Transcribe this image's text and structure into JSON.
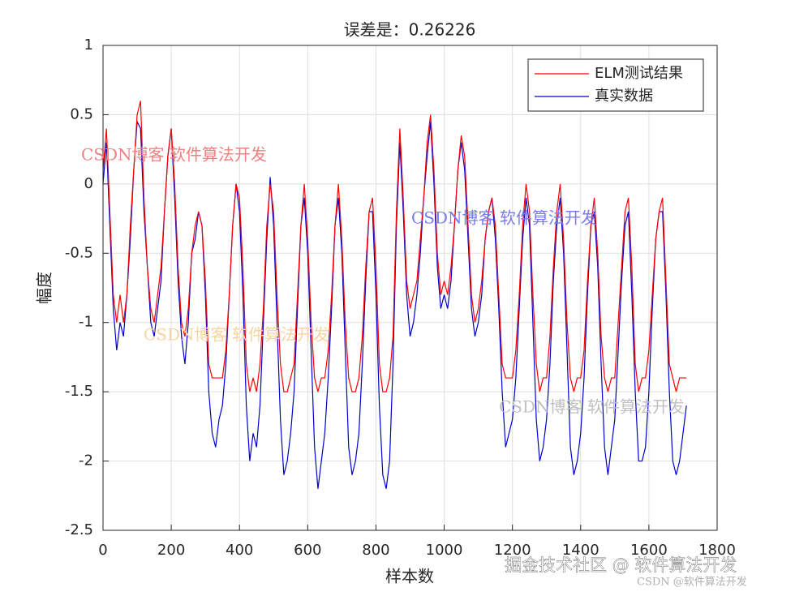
{
  "chart_data": {
    "type": "line",
    "title": "误差是：0.26226",
    "xlabel": "样本数",
    "ylabel": "幅度",
    "xlim": [
      0,
      1800
    ],
    "ylim": [
      -2.5,
      1
    ],
    "xticks": [
      0,
      200,
      400,
      600,
      800,
      1000,
      1200,
      1400,
      1600,
      1800
    ],
    "yticks": [
      -2.5,
      -2,
      -1.5,
      -1,
      -0.5,
      0,
      0.5,
      1
    ],
    "grid": true,
    "legend": "northeast",
    "x": [
      0,
      10,
      20,
      30,
      40,
      50,
      60,
      70,
      80,
      90,
      100,
      110,
      120,
      130,
      140,
      150,
      160,
      170,
      180,
      190,
      200,
      210,
      220,
      230,
      240,
      250,
      260,
      270,
      280,
      290,
      300,
      310,
      320,
      330,
      340,
      350,
      360,
      370,
      380,
      390,
      400,
      410,
      420,
      430,
      440,
      450,
      460,
      470,
      480,
      490,
      500,
      510,
      520,
      530,
      540,
      550,
      560,
      570,
      580,
      590,
      600,
      610,
      620,
      630,
      640,
      650,
      660,
      670,
      680,
      690,
      700,
      710,
      720,
      730,
      740,
      750,
      760,
      770,
      780,
      790,
      800,
      810,
      820,
      830,
      840,
      850,
      860,
      870,
      880,
      890,
      900,
      910,
      920,
      930,
      940,
      950,
      960,
      970,
      980,
      990,
      1000,
      1010,
      1020,
      1030,
      1040,
      1050,
      1060,
      1070,
      1080,
      1090,
      1100,
      1110,
      1120,
      1130,
      1140,
      1150,
      1160,
      1170,
      1180,
      1190,
      1200,
      1210,
      1220,
      1230,
      1240,
      1250,
      1260,
      1270,
      1280,
      1290,
      1300,
      1310,
      1320,
      1330,
      1340,
      1350,
      1360,
      1370,
      1380,
      1390,
      1400,
      1410,
      1420,
      1430,
      1440,
      1450,
      1460,
      1470,
      1480,
      1490,
      1500,
      1510,
      1520,
      1530,
      1540,
      1550,
      1560,
      1570,
      1580,
      1590,
      1600,
      1610,
      1620,
      1630,
      1640,
      1650,
      1660,
      1670,
      1680,
      1690,
      1700,
      1710
    ],
    "series": [
      {
        "name": "ELM测试结果",
        "color": "#ff0000",
        "values": [
          0.1,
          0.4,
          -0.2,
          -0.8,
          -1.0,
          -0.8,
          -1.0,
          -0.8,
          -0.3,
          0.1,
          0.5,
          0.6,
          -0.1,
          -0.6,
          -0.9,
          -1.0,
          -0.8,
          -0.6,
          -0.2,
          0.2,
          0.4,
          0.0,
          -0.6,
          -1.0,
          -1.1,
          -0.9,
          -0.5,
          -0.3,
          -0.2,
          -0.3,
          -0.7,
          -1.3,
          -1.4,
          -1.4,
          -1.4,
          -1.4,
          -1.2,
          -0.8,
          -0.3,
          0.0,
          -0.1,
          -0.6,
          -1.3,
          -1.5,
          -1.4,
          -1.5,
          -1.3,
          -0.9,
          -0.3,
          0.0,
          -0.2,
          -0.8,
          -1.3,
          -1.5,
          -1.5,
          -1.4,
          -1.3,
          -0.8,
          -0.3,
          0.0,
          -0.4,
          -1.0,
          -1.4,
          -1.5,
          -1.4,
          -1.4,
          -1.2,
          -0.8,
          -0.3,
          0.0,
          -0.4,
          -1.0,
          -1.4,
          -1.5,
          -1.5,
          -1.4,
          -1.1,
          -0.6,
          -0.2,
          -0.1,
          -0.6,
          -1.3,
          -1.5,
          -1.5,
          -1.4,
          -1.1,
          -0.2,
          0.4,
          -0.1,
          -0.7,
          -0.9,
          -0.8,
          -0.7,
          -0.4,
          -0.1,
          0.3,
          0.5,
          0.1,
          -0.5,
          -0.8,
          -0.7,
          -0.8,
          -0.6,
          -0.3,
          0.1,
          0.35,
          0.2,
          -0.3,
          -0.8,
          -1.0,
          -0.9,
          -0.7,
          -0.4,
          -0.2,
          -0.1,
          -0.3,
          -0.8,
          -1.3,
          -1.4,
          -1.4,
          -1.4,
          -1.2,
          -0.8,
          -0.3,
          0.0,
          -0.2,
          -0.8,
          -1.3,
          -1.5,
          -1.4,
          -1.4,
          -1.1,
          -0.6,
          -0.2,
          0.0,
          -0.4,
          -1.0,
          -1.4,
          -1.5,
          -1.4,
          -1.4,
          -1.2,
          -0.7,
          -0.3,
          -0.1,
          -0.5,
          -1.1,
          -1.4,
          -1.5,
          -1.4,
          -1.4,
          -1.0,
          -0.6,
          -0.2,
          -0.1,
          -0.6,
          -1.3,
          -1.5,
          -1.4,
          -1.4,
          -1.2,
          -0.8,
          -0.4,
          -0.2,
          -0.1,
          -0.7,
          -1.3,
          -1.4,
          -1.5,
          -1.4,
          -1.4,
          -1.4
        ]
      },
      {
        "name": "真实数据",
        "color": "#0000cc",
        "values": [
          0.0,
          0.3,
          -0.3,
          -0.9,
          -1.2,
          -1.0,
          -1.1,
          -0.8,
          -0.4,
          0.1,
          0.45,
          0.4,
          -0.2,
          -0.6,
          -1.0,
          -1.1,
          -0.9,
          -0.7,
          -0.2,
          0.2,
          0.4,
          -0.1,
          -0.7,
          -1.1,
          -1.3,
          -1.0,
          -0.5,
          -0.4,
          -0.2,
          -0.3,
          -0.8,
          -1.5,
          -1.8,
          -1.9,
          -1.7,
          -1.6,
          -1.3,
          -0.8,
          -0.3,
          0.0,
          -0.2,
          -0.8,
          -1.6,
          -2.0,
          -1.8,
          -1.9,
          -1.6,
          -1.0,
          -0.4,
          0.05,
          -0.3,
          -1.0,
          -1.7,
          -2.1,
          -2.0,
          -1.8,
          -1.5,
          -0.9,
          -0.3,
          -0.1,
          -0.5,
          -1.2,
          -1.9,
          -2.2,
          -2.0,
          -1.8,
          -1.4,
          -0.9,
          -0.3,
          -0.1,
          -0.5,
          -1.2,
          -1.9,
          -2.1,
          -2.0,
          -1.8,
          -1.3,
          -0.7,
          -0.2,
          -0.2,
          -0.8,
          -1.6,
          -2.1,
          -2.2,
          -2.0,
          -1.3,
          -0.3,
          0.3,
          -0.2,
          -0.8,
          -1.1,
          -1.0,
          -0.8,
          -0.5,
          -0.1,
          0.2,
          0.45,
          0.0,
          -0.6,
          -0.9,
          -0.8,
          -0.9,
          -0.7,
          -0.3,
          0.1,
          0.3,
          0.1,
          -0.4,
          -0.9,
          -1.1,
          -1.0,
          -0.8,
          -0.4,
          -0.2,
          -0.1,
          -0.4,
          -0.9,
          -1.5,
          -1.9,
          -1.8,
          -1.7,
          -1.4,
          -0.9,
          -0.4,
          -0.1,
          -0.3,
          -1.0,
          -1.7,
          -2.0,
          -1.9,
          -1.7,
          -1.3,
          -0.7,
          -0.3,
          -0.1,
          -0.5,
          -1.2,
          -1.9,
          -2.1,
          -2.0,
          -1.8,
          -1.4,
          -0.8,
          -0.3,
          -0.2,
          -0.6,
          -1.3,
          -1.9,
          -2.1,
          -1.9,
          -1.7,
          -1.2,
          -0.7,
          -0.3,
          -0.2,
          -0.8,
          -1.5,
          -2.0,
          -2.0,
          -1.9,
          -1.5,
          -0.9,
          -0.4,
          -0.2,
          -0.2,
          -0.8,
          -1.5,
          -2.0,
          -2.1,
          -2.0,
          -1.8,
          -1.6
        ]
      }
    ],
    "annotations": [
      {
        "text": "CSDN博客 软件算法开发",
        "color": "#f08080"
      },
      {
        "text": "CSDN博客 软件算法开发",
        "color": "#7b7bf0"
      },
      {
        "text": "CSDN博客 软件算法开发",
        "color": "#f5d5a0"
      },
      {
        "text": "CSDN博客 软件算法开发",
        "color": "#c0c0c0"
      },
      {
        "text": "掘金技术社区 @ 软件算法开发",
        "color": "#ffffff"
      },
      {
        "text": "CSDN @软件算法开发",
        "color": "#e0e0e0"
      }
    ]
  }
}
